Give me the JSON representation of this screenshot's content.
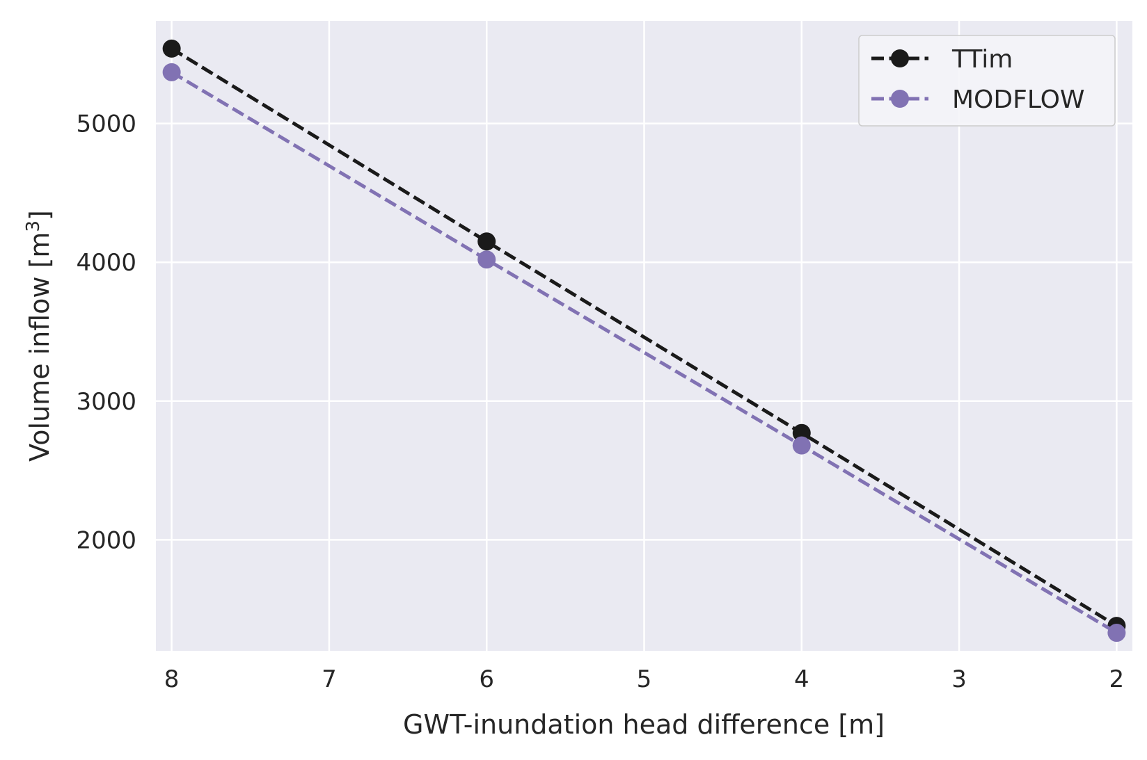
{
  "chart_data": {
    "type": "line",
    "title": "",
    "xlabel": "GWT-inundation head difference [m]",
    "ylabel_main": "Volume inflow [m",
    "ylabel_sup": "3",
    "ylabel_close": "]",
    "x": [
      8,
      6,
      4,
      2
    ],
    "xlim": [
      8.1,
      1.9
    ],
    "x_inverted": true,
    "ylim": [
      1200,
      5740
    ],
    "x_ticks": [
      8,
      7,
      6,
      5,
      4,
      3,
      2
    ],
    "y_ticks": [
      2000,
      3000,
      4000,
      5000
    ],
    "grid": true,
    "background": "#eaeaf2",
    "legend_position": "top-right",
    "series": [
      {
        "name": "TTim",
        "values": [
          5540,
          4150,
          2770,
          1380
        ],
        "color": "#1a1a1a",
        "marker": "circle",
        "linestyle": "dashed"
      },
      {
        "name": "MODFLOW",
        "values": [
          5370,
          4020,
          2680,
          1330
        ],
        "color": "#8172b3",
        "marker": "circle",
        "linestyle": "dashed"
      }
    ]
  }
}
